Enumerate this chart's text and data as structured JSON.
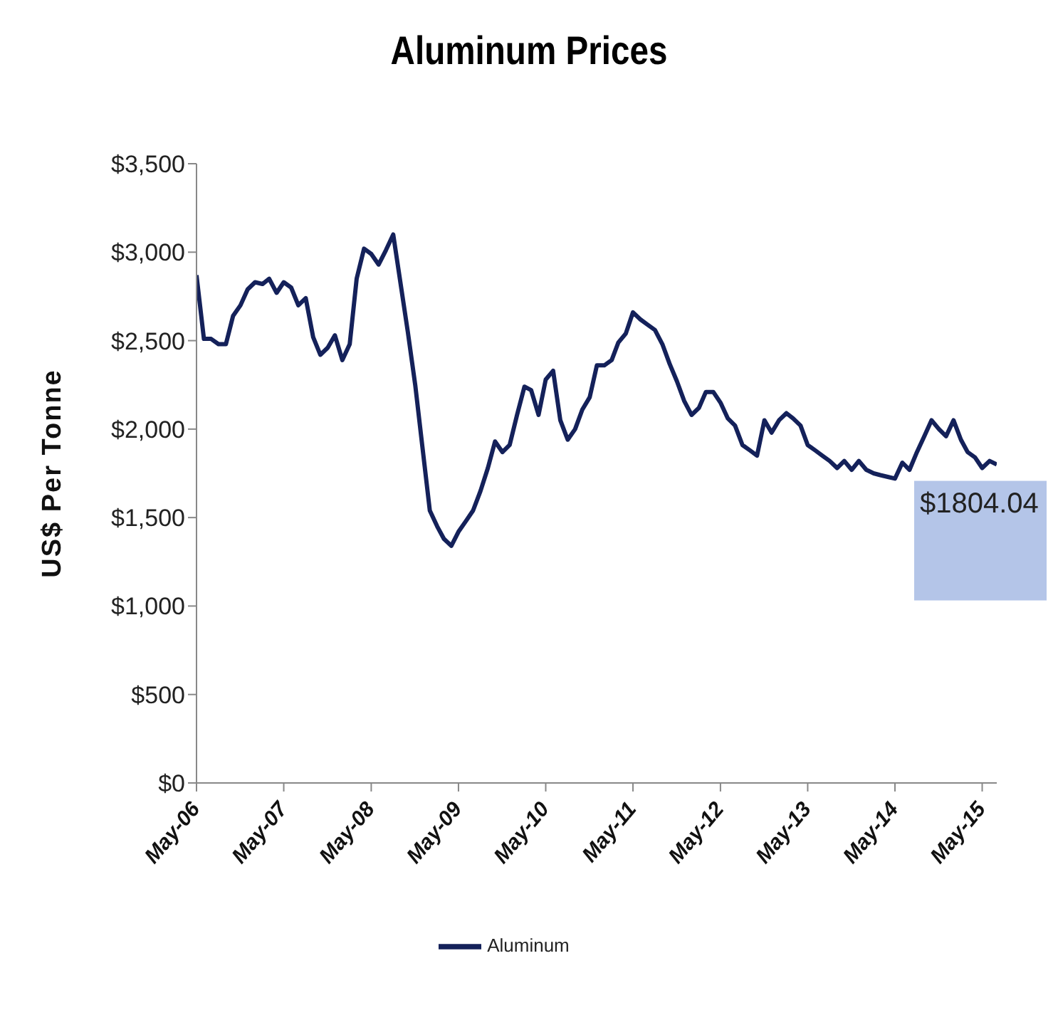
{
  "chart_data": {
    "type": "line",
    "title": "Aluminum Prices",
    "ylabel": "US$ Per Tonne",
    "x": [
      "2006-05",
      "2006-06",
      "2006-07",
      "2006-08",
      "2006-09",
      "2006-10",
      "2006-11",
      "2006-12",
      "2007-01",
      "2007-02",
      "2007-03",
      "2007-04",
      "2007-05",
      "2007-06",
      "2007-07",
      "2007-08",
      "2007-09",
      "2007-10",
      "2007-11",
      "2007-12",
      "2008-01",
      "2008-02",
      "2008-03",
      "2008-04",
      "2008-05",
      "2008-06",
      "2008-07",
      "2008-08",
      "2008-09",
      "2008-10",
      "2008-11",
      "2008-12",
      "2009-01",
      "2009-02",
      "2009-03",
      "2009-04",
      "2009-05",
      "2009-06",
      "2009-07",
      "2009-08",
      "2009-09",
      "2009-10",
      "2009-11",
      "2009-12",
      "2010-01",
      "2010-02",
      "2010-03",
      "2010-04",
      "2010-05",
      "2010-06",
      "2010-07",
      "2010-08",
      "2010-09",
      "2010-10",
      "2010-11",
      "2010-12",
      "2011-01",
      "2011-02",
      "2011-03",
      "2011-04",
      "2011-05",
      "2011-06",
      "2011-07",
      "2011-08",
      "2011-09",
      "2011-10",
      "2011-11",
      "2011-12",
      "2012-01",
      "2012-02",
      "2012-03",
      "2012-04",
      "2012-05",
      "2012-06",
      "2012-07",
      "2012-08",
      "2012-09",
      "2012-10",
      "2012-11",
      "2012-12",
      "2013-01",
      "2013-02",
      "2013-03",
      "2013-04",
      "2013-05",
      "2013-06",
      "2013-07",
      "2013-08",
      "2013-09",
      "2013-10",
      "2013-11",
      "2013-12",
      "2014-01",
      "2014-02",
      "2014-03",
      "2014-04",
      "2014-05",
      "2014-06",
      "2014-07",
      "2014-08",
      "2014-09",
      "2014-10",
      "2014-11",
      "2014-12",
      "2015-01",
      "2015-02",
      "2015-03",
      "2015-04",
      "2015-05",
      "2015-06",
      "2015-07"
    ],
    "series": [
      {
        "name": "Aluminum",
        "color": "#14215a",
        "values": [
          2870,
          2510,
          2510,
          2480,
          2480,
          2640,
          2700,
          2790,
          2830,
          2820,
          2850,
          2770,
          2830,
          2800,
          2700,
          2740,
          2520,
          2420,
          2460,
          2530,
          2390,
          2480,
          2850,
          3020,
          2990,
          2930,
          3010,
          3100,
          2820,
          2550,
          2250,
          1900,
          1540,
          1450,
          1380,
          1340,
          1420,
          1480,
          1540,
          1650,
          1780,
          1930,
          1870,
          1910,
          2080,
          2240,
          2220,
          2080,
          2280,
          2330,
          2050,
          1940,
          2000,
          2110,
          2180,
          2360,
          2360,
          2390,
          2490,
          2540,
          2660,
          2620,
          2590,
          2560,
          2480,
          2370,
          2270,
          2160,
          2080,
          2120,
          2210,
          2210,
          2150,
          2060,
          2020,
          1910,
          1880,
          1850,
          2050,
          1980,
          2050,
          2090,
          2060,
          2020,
          1910,
          1880,
          1850,
          1820,
          1780,
          1820,
          1770,
          1820,
          1770,
          1750,
          1740,
          1730,
          1720,
          1810,
          1770,
          1870,
          1960,
          2050,
          2000,
          1960,
          2050,
          1940,
          1870,
          1840,
          1780,
          1820,
          1800
        ]
      }
    ],
    "xlim": [
      "2006-05",
      "2015-07"
    ],
    "xticks": [
      {
        "value": "2006-05",
        "label": "May-06"
      },
      {
        "value": "2007-05",
        "label": "May-07"
      },
      {
        "value": "2008-05",
        "label": "May-08"
      },
      {
        "value": "2009-05",
        "label": "May-09"
      },
      {
        "value": "2010-05",
        "label": "May-10"
      },
      {
        "value": "2011-05",
        "label": "May-11"
      },
      {
        "value": "2012-05",
        "label": "May-12"
      },
      {
        "value": "2013-05",
        "label": "May-13"
      },
      {
        "value": "2014-05",
        "label": "May-14"
      },
      {
        "value": "2015-05",
        "label": "May-15"
      }
    ],
    "ylim": [
      0,
      3500
    ],
    "yticks": [
      {
        "value": 0,
        "label": "$0"
      },
      {
        "value": 500,
        "label": "$500"
      },
      {
        "value": 1000,
        "label": "$1,000"
      },
      {
        "value": 1500,
        "label": "$1,500"
      },
      {
        "value": 2000,
        "label": "$2,000"
      },
      {
        "value": 2500,
        "label": "$2,500"
      },
      {
        "value": 3000,
        "label": "$3,000"
      },
      {
        "value": 3500,
        "label": "$3,500"
      }
    ],
    "annotations": [
      {
        "text": "$1804.04",
        "x": "2015-07",
        "y": 1804.04
      }
    ],
    "legend": "bottom",
    "grid": false,
    "marker": "none",
    "line_style": "solid"
  }
}
